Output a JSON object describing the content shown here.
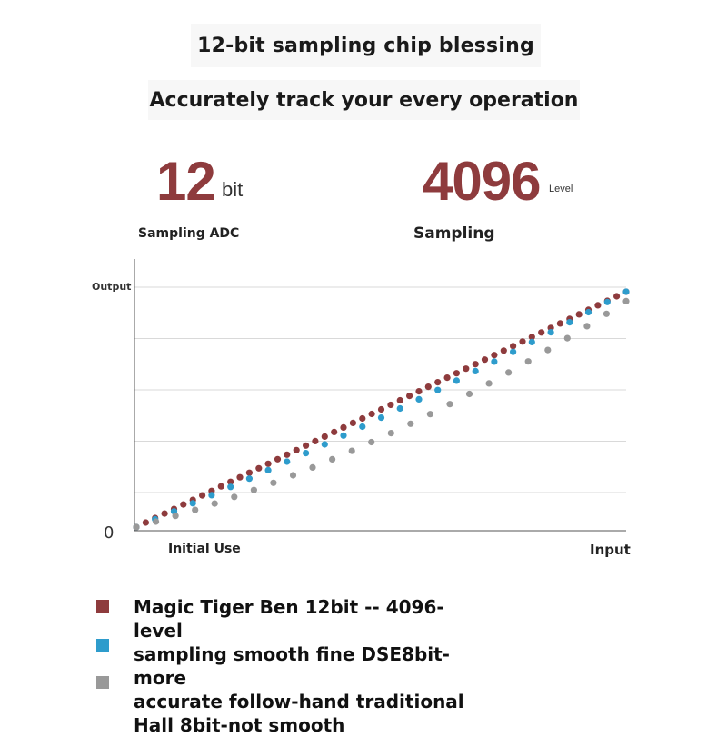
{
  "header": {
    "title": "12-bit sampling chip blessing",
    "subtitle": "Accurately track your every operation"
  },
  "stats": [
    {
      "value": "12",
      "unit": "bit",
      "caption": "Sampling ADC"
    },
    {
      "value": "4096",
      "unit": "Level",
      "caption": "Sampling"
    }
  ],
  "chart_data": {
    "type": "scatter",
    "title": "",
    "xlabel": "Input",
    "ylabel": "Output",
    "x_start_label": "Initial Use",
    "origin_label": "0",
    "xlim": [
      0,
      1
    ],
    "ylim": [
      0,
      1
    ],
    "grid": true,
    "legend_placement": "bottom",
    "legend_text_lines": [
      "Magic Tiger Ben 12bit -- 4096-level",
      "sampling smooth fine DSE8bit-more",
      "accurate follow-hand traditional",
      "Hall 8bit-not smooth"
    ],
    "series": [
      {
        "color": "#8e3b3d",
        "curve": "linear",
        "points": 53
      },
      {
        "color": "#2e9ccc",
        "curve": "bowed-mid",
        "points": 27
      },
      {
        "color": "#999999",
        "curve": "bowed-low",
        "points": 26
      }
    ]
  }
}
